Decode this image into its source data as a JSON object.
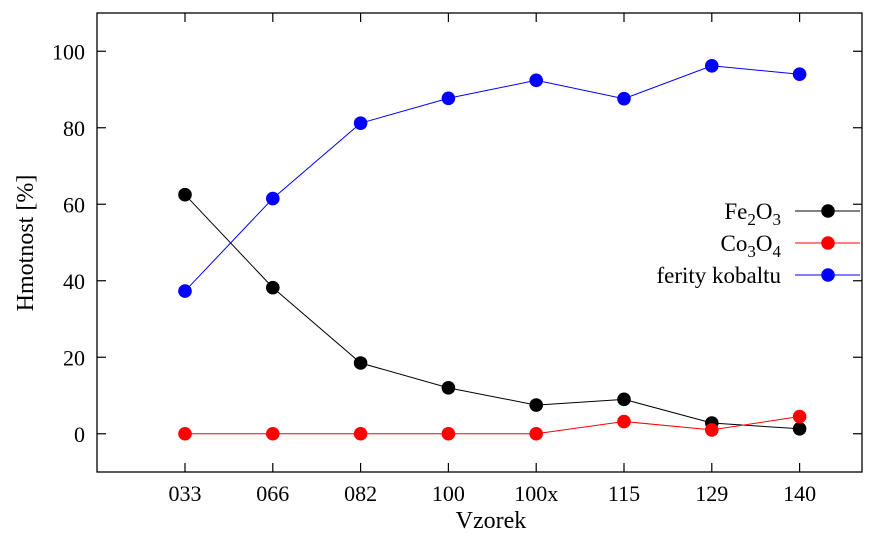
{
  "chart_data": {
    "type": "line",
    "categories": [
      "033",
      "066",
      "082",
      "100",
      "100x",
      "115",
      "129",
      "140"
    ],
    "xlabel": "Vzorek",
    "ylabel": "Hmotnost [%]",
    "ylim": [
      -10,
      110
    ],
    "yticks": [
      0,
      20,
      40,
      60,
      80,
      100
    ],
    "grid": false,
    "legend_position": "right",
    "series": [
      {
        "name": "Fe2O3",
        "color": "#000000",
        "values": [
          62.5,
          38.2,
          18.5,
          12.0,
          7.5,
          9.0,
          2.8,
          1.3
        ]
      },
      {
        "name": "Co3O4",
        "color": "#ff0000",
        "values": [
          0,
          0,
          0,
          0,
          0,
          3.2,
          1.0,
          4.5
        ]
      },
      {
        "name": "ferity kobaltu",
        "color": "#0000ff",
        "values": [
          37.3,
          61.5,
          81.2,
          87.7,
          92.4,
          87.6,
          96.2,
          94.0
        ]
      }
    ]
  }
}
